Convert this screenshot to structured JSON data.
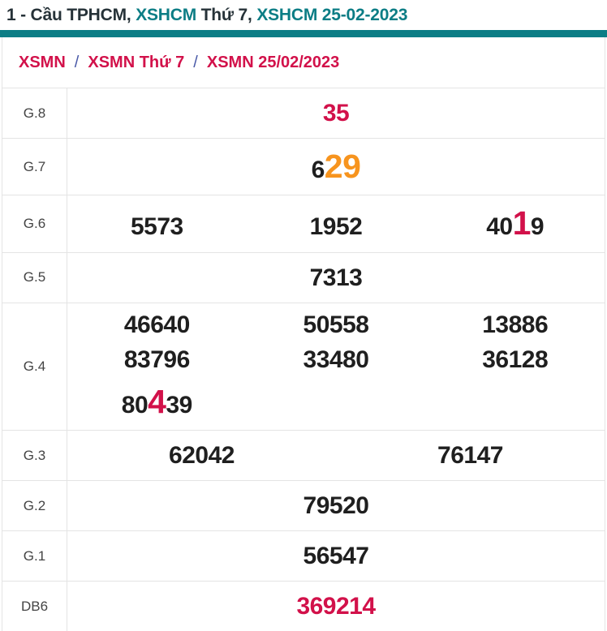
{
  "title": {
    "segments": [
      {
        "text": "1 - Cầu TPHCM, ",
        "color": "dark"
      },
      {
        "text": "XSHCM",
        "color": "teal"
      },
      {
        "text": " Thứ 7, ",
        "color": "dark"
      },
      {
        "text": "XSHCM 25-02-2023",
        "color": "teal"
      }
    ]
  },
  "breadcrumb": {
    "items": [
      "XSMN",
      "XSMN Thứ 7",
      "XSMN 25/02/2023"
    ],
    "separator": "/"
  },
  "table": {
    "rows": [
      {
        "label": "G.8",
        "lines": [
          [
            [
              {
                "t": "35",
                "c": "red"
              }
            ]
          ]
        ]
      },
      {
        "label": "G.7",
        "lines": [
          [
            [
              {
                "t": "6"
              },
              {
                "t": "29",
                "c": "orange",
                "big": true
              }
            ]
          ]
        ]
      },
      {
        "label": "G.6",
        "lines": [
          [
            [
              {
                "t": "5573"
              }
            ],
            [
              {
                "t": "1952"
              }
            ],
            [
              {
                "t": "40"
              },
              {
                "t": "1",
                "c": "red",
                "big": true
              },
              {
                "t": "9"
              }
            ]
          ]
        ]
      },
      {
        "label": "G.5",
        "lines": [
          [
            [
              {
                "t": "7313"
              }
            ]
          ]
        ]
      },
      {
        "label": "G.4",
        "lines": [
          [
            [
              {
                "t": "46640"
              }
            ],
            [
              {
                "t": "50558"
              }
            ],
            [
              {
                "t": "13886"
              }
            ]
          ],
          [
            [
              {
                "t": "83796"
              }
            ],
            [
              {
                "t": "33480"
              }
            ],
            [
              {
                "t": "36128"
              }
            ]
          ],
          [
            [
              {
                "t": "80"
              },
              {
                "t": "4",
                "c": "red",
                "big": true
              },
              {
                "t": "39"
              }
            ],
            [],
            []
          ]
        ]
      },
      {
        "label": "G.3",
        "lines": [
          [
            [
              {
                "t": "62042"
              }
            ],
            [
              {
                "t": "76147"
              }
            ]
          ]
        ]
      },
      {
        "label": "G.2",
        "lines": [
          [
            [
              {
                "t": "79520"
              }
            ]
          ]
        ]
      },
      {
        "label": "G.1",
        "lines": [
          [
            [
              {
                "t": "56547"
              }
            ]
          ]
        ]
      },
      {
        "label": "DB6",
        "lines": [
          [
            [
              {
                "t": "369214",
                "c": "red"
              }
            ]
          ]
        ]
      }
    ]
  },
  "colors": {
    "teal": "#0c7d85",
    "red": "#d2114a",
    "orange": "#f7941e",
    "dark": "#1f1f1f",
    "titledark": "#263238",
    "sepblue": "#4a5aa8",
    "border": "#e4e4e4",
    "label": "#444444"
  }
}
